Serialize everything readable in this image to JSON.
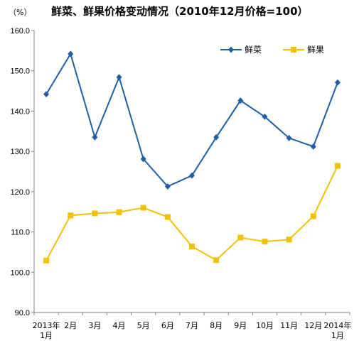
{
  "chart_data": {
    "type": "line",
    "title": "鲜菜、鲜果价格变动情况（2010年12月价格=100）",
    "unit_label": "（%）",
    "categories": [
      [
        "2013年",
        "1月"
      ],
      [
        "2月"
      ],
      [
        "3月"
      ],
      [
        "4月"
      ],
      [
        "5月"
      ],
      [
        "6月"
      ],
      [
        "7月"
      ],
      [
        "8月"
      ],
      [
        "9月"
      ],
      [
        "10月"
      ],
      [
        "11月"
      ],
      [
        "12月"
      ],
      [
        "2014年",
        "1月"
      ]
    ],
    "ylim": [
      90,
      160
    ],
    "yticks": [
      "90.0",
      "100.0",
      "110.0",
      "120.0",
      "130.0",
      "140.0",
      "150.0",
      "160.0"
    ],
    "grid": false,
    "legend_position": "top-right",
    "series": [
      {
        "name": "鲜菜",
        "color": "#1F5FA6",
        "marker": "diamond",
        "values": [
          144.2,
          154.2,
          133.5,
          148.4,
          128.1,
          121.3,
          124.0,
          133.5,
          142.6,
          138.6,
          133.3,
          131.2,
          147.1
        ]
      },
      {
        "name": "鲜果",
        "color": "#F2C200",
        "marker": "square",
        "values": [
          102.9,
          114.1,
          114.6,
          114.9,
          116.0,
          113.7,
          106.4,
          103.0,
          108.6,
          107.6,
          108.1,
          113.9,
          126.4
        ]
      }
    ]
  }
}
